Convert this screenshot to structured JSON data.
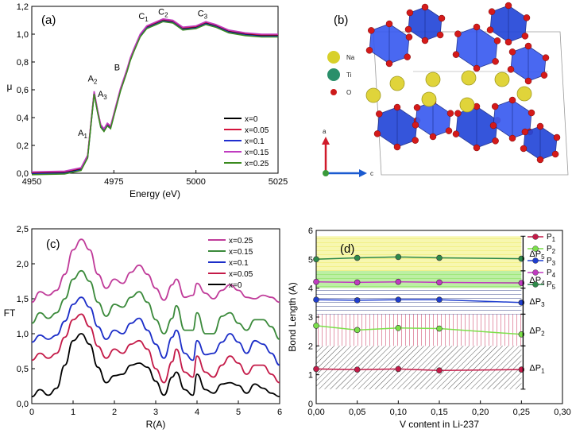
{
  "chart_data": [
    {
      "panel": "(a)",
      "type": "line",
      "xlabel": "Energy (eV)",
      "ylabel": "μ",
      "xlim": [
        4950,
        5025
      ],
      "ylim": [
        0.0,
        1.2
      ],
      "xticks": [
        4950,
        4975,
        5000,
        5025
      ],
      "yticks": [
        "0,0",
        "0,2",
        "0,4",
        "0,6",
        "0,8",
        "1,0",
        "1,2"
      ],
      "legend_position": "bottom-right",
      "series": [
        {
          "name": "x=0",
          "color": "#000000"
        },
        {
          "name": "x=0.05",
          "color": "#d4143c"
        },
        {
          "name": "x=0.1",
          "color": "#1f2ecf"
        },
        {
          "name": "x=0.15",
          "color": "#c03cc0"
        },
        {
          "name": "x=0.25",
          "color": "#3b8a1f"
        }
      ],
      "x": [
        4950,
        4960,
        4965,
        4967,
        4968,
        4969,
        4970,
        4971,
        4972,
        4973,
        4974,
        4975,
        4977,
        4979,
        4980,
        4981,
        4983,
        4985,
        4988,
        4990,
        4993,
        4996,
        5000,
        5003,
        5006,
        5010,
        5015,
        5020,
        5025
      ],
      "y": [
        0.0,
        0.005,
        0.03,
        0.12,
        0.35,
        0.58,
        0.45,
        0.34,
        0.31,
        0.35,
        0.33,
        0.42,
        0.6,
        0.74,
        0.82,
        0.88,
        0.99,
        1.05,
        1.08,
        1.1,
        1.09,
        1.04,
        1.05,
        1.08,
        1.06,
        1.02,
        1.0,
        0.99,
        0.99
      ],
      "annotations": [
        {
          "label": "A",
          "sub": "1",
          "x": 4965.5,
          "y": 0.27
        },
        {
          "label": "A",
          "sub": "2",
          "x": 4968.5,
          "y": 0.66
        },
        {
          "label": "A",
          "sub": "3",
          "x": 4971.5,
          "y": 0.55
        },
        {
          "label": "B",
          "sub": "",
          "x": 4976,
          "y": 0.74
        },
        {
          "label": "C",
          "sub": "1",
          "x": 4984,
          "y": 1.11
        },
        {
          "label": "C",
          "sub": "2",
          "x": 4990,
          "y": 1.14
        },
        {
          "label": "C",
          "sub": "3",
          "x": 5002,
          "y": 1.13
        }
      ]
    },
    {
      "panel": "(c)",
      "type": "line",
      "xlabel": "R(A)",
      "ylabel": "FT",
      "xlim": [
        0,
        6
      ],
      "ylim": [
        0.0,
        2.5
      ],
      "xticks": [
        "0",
        "1",
        "2",
        "3",
        "4",
        "5",
        "6"
      ],
      "yticks": [
        "0,0",
        "0,5",
        "1,0",
        "1,5",
        "2,0",
        "2,5"
      ],
      "legend_position": "top-right",
      "r": [
        0,
        0.2,
        0.4,
        0.6,
        0.8,
        1.0,
        1.2,
        1.4,
        1.6,
        1.8,
        2.0,
        2.2,
        2.4,
        2.6,
        2.8,
        3.0,
        3.2,
        3.4,
        3.5,
        3.7,
        3.9,
        4.0,
        4.2,
        4.4,
        4.6,
        4.8,
        5.0,
        5.2,
        5.4,
        5.6,
        5.8,
        6.0
      ],
      "series": [
        {
          "name": "x=0.25",
          "color": "#c03c9a",
          "values": [
            1.45,
            1.6,
            1.55,
            1.62,
            1.85,
            2.2,
            2.35,
            2.2,
            1.85,
            1.65,
            1.78,
            1.72,
            1.88,
            1.98,
            1.85,
            1.65,
            1.48,
            1.7,
            1.78,
            1.52,
            1.55,
            1.72,
            1.58,
            1.5,
            1.62,
            1.7,
            1.62,
            1.52,
            1.5,
            1.55,
            1.52,
            1.45
          ]
        },
        {
          "name": "x=0.15",
          "color": "#3b8a3b",
          "values": [
            1.15,
            1.3,
            1.22,
            1.3,
            1.5,
            1.78,
            1.9,
            1.75,
            1.45,
            1.25,
            1.42,
            1.38,
            1.52,
            1.6,
            1.45,
            1.2,
            1.0,
            1.22,
            1.4,
            1.05,
            1.05,
            1.3,
            1.0,
            1.0,
            1.25,
            1.3,
            1.15,
            1.05,
            1.2,
            1.2,
            1.1,
            0.92
          ]
        },
        {
          "name": "x=0.1",
          "color": "#1c2ec8",
          "values": [
            0.88,
            0.98,
            0.92,
            0.98,
            1.18,
            1.42,
            1.52,
            1.38,
            1.1,
            0.92,
            1.05,
            1.0,
            1.15,
            1.22,
            1.05,
            0.85,
            0.65,
            0.95,
            1.05,
            0.72,
            0.62,
            0.9,
            0.7,
            0.72,
            0.88,
            1.0,
            0.88,
            0.72,
            0.9,
            0.85,
            0.72,
            0.55
          ]
        },
        {
          "name": "x=0.05",
          "color": "#c41a48",
          "values": [
            0.62,
            0.72,
            0.65,
            0.72,
            0.95,
            1.2,
            1.28,
            1.1,
            0.82,
            0.65,
            0.78,
            0.72,
            0.85,
            0.9,
            0.78,
            0.5,
            0.3,
            0.6,
            0.78,
            0.45,
            0.38,
            0.68,
            0.45,
            0.38,
            0.55,
            0.68,
            0.58,
            0.42,
            0.55,
            0.55,
            0.42,
            0.3
          ]
        },
        {
          "name": "x=0",
          "color": "#000000",
          "values": [
            0.1,
            0.2,
            0.12,
            0.22,
            0.55,
            0.9,
            1.0,
            0.85,
            0.52,
            0.3,
            0.4,
            0.42,
            0.55,
            0.58,
            0.52,
            0.32,
            0.12,
            0.38,
            0.45,
            0.2,
            0.12,
            0.42,
            0.2,
            0.15,
            0.28,
            0.3,
            0.26,
            0.15,
            0.28,
            0.22,
            0.15,
            0.1
          ]
        }
      ]
    },
    {
      "panel": "(d)",
      "type": "line",
      "xlabel": "V content in Li-237",
      "ylabel": "Bond Length (A)",
      "xlim": [
        0.0,
        0.3
      ],
      "ylim": [
        0,
        6
      ],
      "xticks": [
        "0,00",
        "0,05",
        "0,10",
        "0,15",
        "0,20",
        "0,25",
        "0,30"
      ],
      "yticks": [
        "0",
        "1",
        "2",
        "3",
        "4",
        "5",
        "6"
      ],
      "legend_position": "right",
      "x": [
        0.0,
        0.05,
        0.1,
        0.15,
        0.25
      ],
      "series": [
        {
          "name": "P",
          "sub": "1",
          "color": "#c41a48",
          "values": [
            1.2,
            1.18,
            1.2,
            1.15,
            1.18
          ]
        },
        {
          "name": "P",
          "sub": "2",
          "color": "#7ce04a",
          "values": [
            2.7,
            2.55,
            2.62,
            2.6,
            2.4
          ]
        },
        {
          "name": "P",
          "sub": "3",
          "color": "#1f3ecf",
          "values": [
            3.6,
            3.58,
            3.6,
            3.6,
            3.5
          ]
        },
        {
          "name": "P",
          "sub": "4",
          "color": "#c03cc0",
          "values": [
            4.22,
            4.2,
            4.22,
            4.2,
            4.18
          ]
        },
        {
          "name": "P",
          "sub": "5",
          "color": "#2e8a4a",
          "values": [
            5.0,
            5.05,
            5.08,
            5.05,
            5.02
          ]
        }
      ],
      "bands": [
        {
          "name": "ΔP",
          "sub": "1",
          "low": 0.5,
          "high": 2.0,
          "color": "#444444"
        },
        {
          "name": "ΔP",
          "sub": "2",
          "low": 2.0,
          "high": 3.1,
          "color": "#c41a48"
        },
        {
          "name": "ΔP",
          "sub": "3",
          "low": 3.1,
          "high": 4.0,
          "color": "#1f2e7a"
        },
        {
          "name": "ΔP",
          "sub": "4",
          "low": 4.0,
          "high": 4.6,
          "color": "#7ce04a"
        },
        {
          "name": "ΔP",
          "sub": "5",
          "low": 4.6,
          "high": 5.8,
          "color": "#e8e040"
        }
      ]
    }
  ],
  "panel_b": {
    "label": "(b)",
    "legend": [
      {
        "element": "Na",
        "color": "#d8d02a"
      },
      {
        "element": "Ti",
        "color": "#2a8f6a"
      },
      {
        "element": "O",
        "color": "#cc1a1a"
      }
    ],
    "axes": [
      {
        "name": "a",
        "color": "#d01a2a"
      },
      {
        "name": "c",
        "color": "#1a5ad0"
      }
    ]
  }
}
